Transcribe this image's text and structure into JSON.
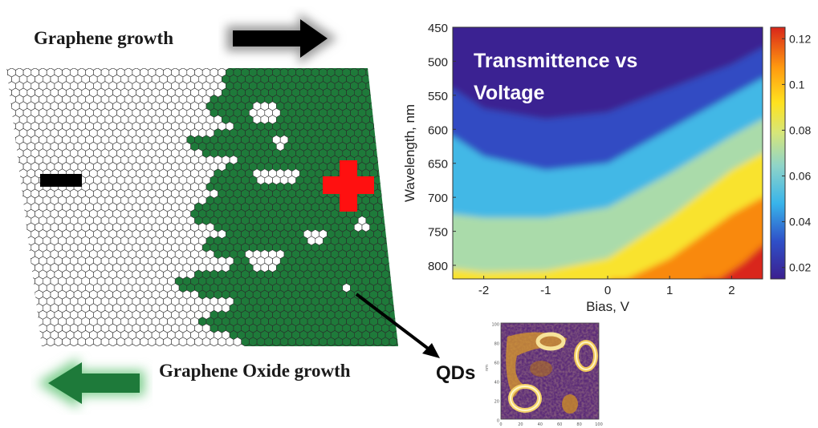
{
  "labels": {
    "graphene_growth": "Graphene growth",
    "graphene_oxide_growth": "Graphene Oxide growth",
    "qds": "QDs",
    "minus_sign": "−",
    "plus_sign": "+"
  },
  "colors": {
    "lattice_oxide": "#1e7a3a",
    "plus_sign": "#ff1010",
    "arrow_graphene": "#000000",
    "arrow_oxide": "#1e7a3a"
  },
  "chart_data": {
    "type": "heatmap",
    "title": "Transmittence vs\nVoltage",
    "xlabel": "Bias, V",
    "ylabel": "Wavelength, nm",
    "xlim": [
      -2.5,
      2.5
    ],
    "ylim": [
      820,
      450
    ],
    "xticks": [
      -2,
      -1,
      0,
      1,
      2
    ],
    "yticks": [
      450,
      500,
      550,
      600,
      650,
      700,
      750,
      800
    ],
    "colorbar": {
      "range": [
        0.015,
        0.125
      ],
      "ticks": [
        0.02,
        0.04,
        0.06,
        0.08,
        0.1,
        0.12
      ],
      "tick_labels": [
        "0.02",
        "0.04",
        "0.06",
        "0.08",
        "0.1",
        "0.12"
      ]
    },
    "contour_levels": [
      {
        "value": 0.02,
        "boundary_wavelength_by_bias": [
          [
            -2.5,
            540
          ],
          [
            -2,
            570
          ],
          [
            -1,
            585
          ],
          [
            0,
            575
          ],
          [
            1,
            540
          ],
          [
            2,
            505
          ],
          [
            2.5,
            480
          ]
        ]
      },
      {
        "value": 0.04,
        "boundary_wavelength_by_bias": [
          [
            -2.5,
            610
          ],
          [
            -2,
            640
          ],
          [
            -1,
            660
          ],
          [
            0,
            650
          ],
          [
            1,
            600
          ],
          [
            2,
            550
          ],
          [
            2.5,
            525
          ]
        ]
      },
      {
        "value": 0.06,
        "boundary_wavelength_by_bias": [
          [
            -2.5,
            725
          ],
          [
            -2,
            730
          ],
          [
            -1,
            730
          ],
          [
            0,
            715
          ],
          [
            1,
            665
          ],
          [
            2,
            610
          ],
          [
            2.5,
            585
          ]
        ]
      },
      {
        "value": 0.08,
        "boundary_wavelength_by_bias": [
          [
            -2.5,
            805
          ],
          [
            -2,
            810
          ],
          [
            -1,
            808
          ],
          [
            0,
            790
          ],
          [
            1,
            730
          ],
          [
            2,
            660
          ],
          [
            2.5,
            635
          ]
        ]
      },
      {
        "value": 0.1,
        "boundary_wavelength_by_bias": [
          [
            0.3,
            820
          ],
          [
            1,
            790
          ],
          [
            2,
            725
          ],
          [
            2.5,
            700
          ]
        ]
      },
      {
        "value": 0.12,
        "boundary_wavelength_by_bias": [
          [
            1.8,
            820
          ],
          [
            2.2,
            795
          ],
          [
            2.5,
            770
          ]
        ]
      }
    ]
  },
  "qd_image": {
    "x_ticks": [
      "0",
      "20",
      "40",
      "60",
      "80",
      "100"
    ],
    "y_ticks": [
      "100",
      "80",
      "60",
      "40",
      "20",
      "0"
    ],
    "axis_label": "nm"
  }
}
